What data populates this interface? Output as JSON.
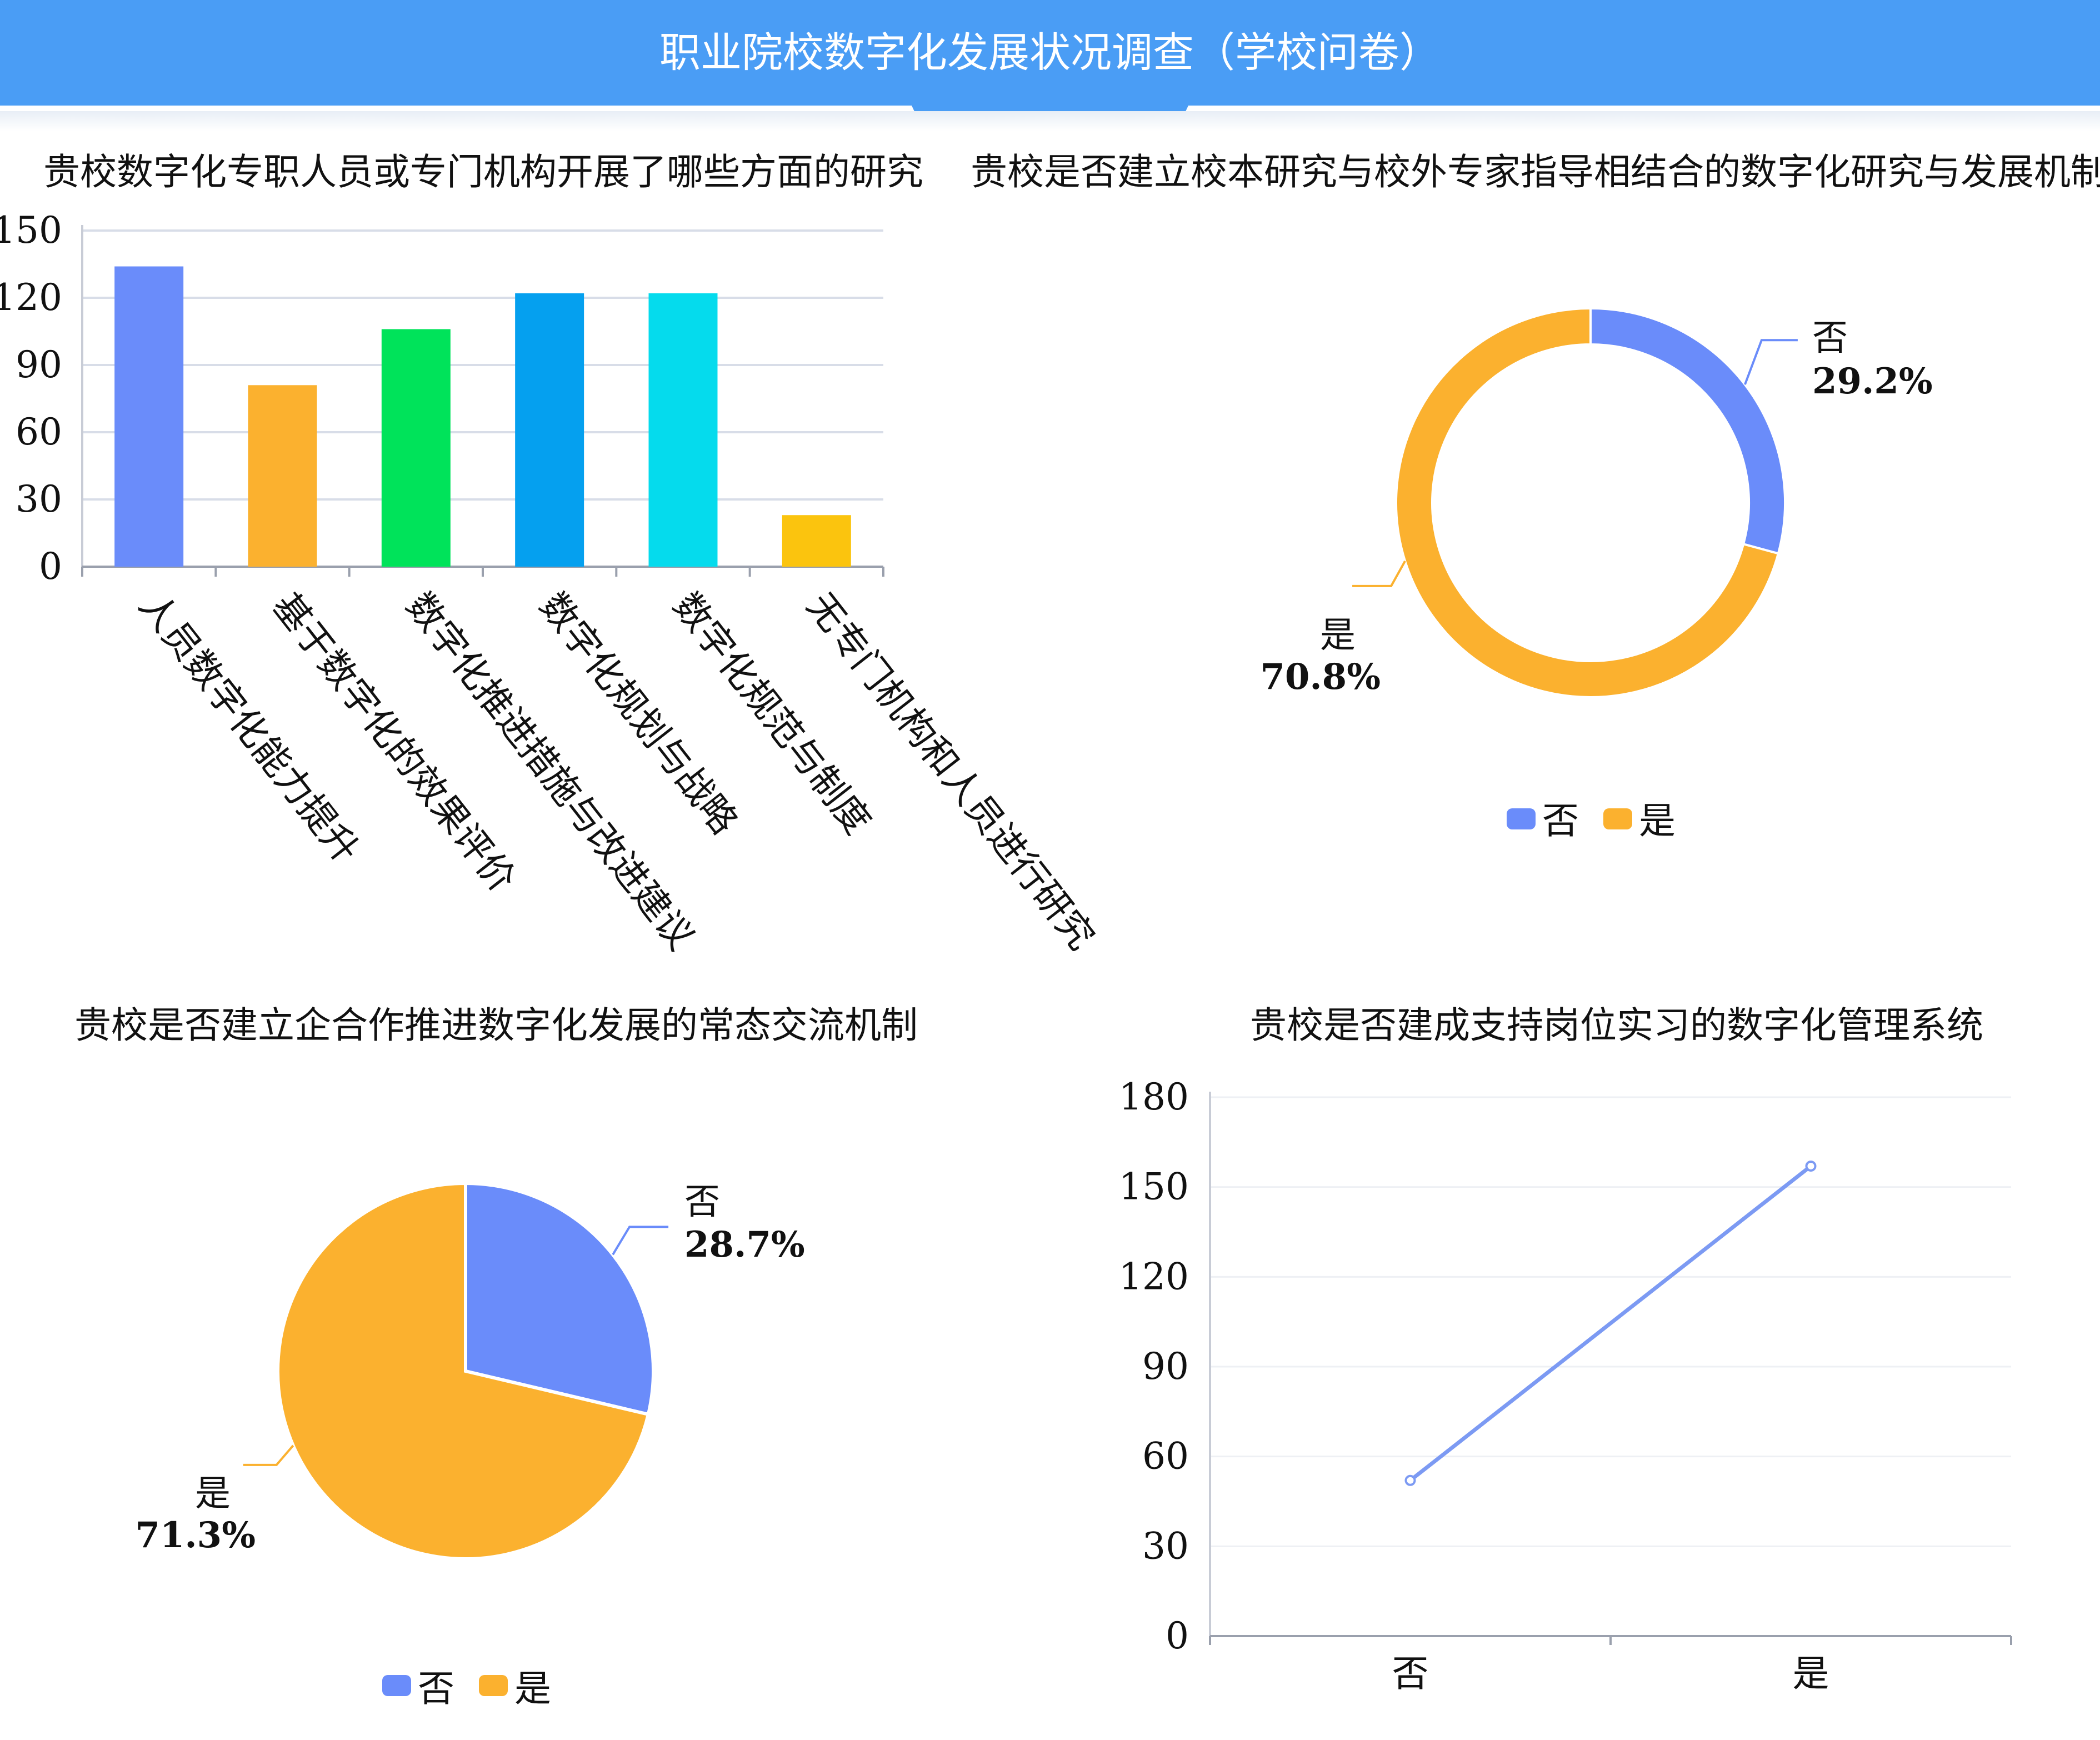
{
  "page_title": "职业院校数字化发展状况调查（学校问卷）",
  "colors": {
    "banner": "#4a9df5",
    "no": "#6a8cfa",
    "yes": "#fbb12f",
    "bar_colors": [
      "#6a8cfa",
      "#fbb12f",
      "#00e35a",
      "#05a0ef",
      "#05dbed",
      "#fbc40e"
    ],
    "line": "#7c9af3",
    "grid": "#d8dde8"
  },
  "chart_data": [
    {
      "type": "bar",
      "title": "贵校数字化专职人员或专门机构开展了哪些方面的研究",
      "categories": [
        "人员数字化能力提升",
        "基于数字化的效果评价",
        "数字化推进措施与改进建议",
        "数字化规划与战略",
        "数字化规范与制度",
        "无专门机构和人员进行研究"
      ],
      "values": [
        134,
        81,
        106,
        122,
        122,
        23
      ],
      "ylim": [
        0,
        150
      ],
      "yticks": [
        "0",
        "30",
        "60",
        "90",
        "120",
        "150"
      ],
      "grid": true
    },
    {
      "type": "pie",
      "donut": true,
      "title": "贵校是否建立校本研究与校外专家指导相结合的数字化研究与发展机制",
      "slices": [
        {
          "name": "否",
          "value": 29.2,
          "label": "29.2%"
        },
        {
          "name": "是",
          "value": 70.8,
          "label": "70.8%"
        }
      ],
      "legend": [
        "否",
        "是"
      ],
      "legend_position": "bottom"
    },
    {
      "type": "pie",
      "title": "贵校是否建立企合作推进数字化发展的常态交流机制",
      "slices": [
        {
          "name": "否",
          "value": 28.7,
          "label": "28.7%"
        },
        {
          "name": "是",
          "value": 71.3,
          "label": "71.3%"
        }
      ],
      "legend": [
        "否",
        "是"
      ],
      "legend_position": "bottom"
    },
    {
      "type": "line",
      "title": "贵校是否建成支持岗位实习的数字化管理系统",
      "categories": [
        "否",
        "是"
      ],
      "values": [
        52,
        157
      ],
      "ylim": [
        0,
        180
      ],
      "yticks": [
        "0",
        "30",
        "60",
        "90",
        "120",
        "150",
        "180"
      ],
      "grid": true
    }
  ]
}
